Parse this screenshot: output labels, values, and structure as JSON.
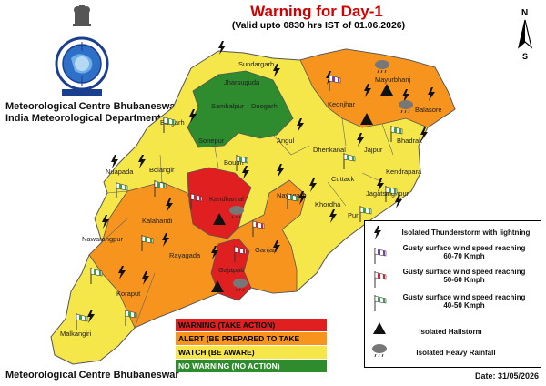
{
  "header": {
    "title": "Warning for Day-1",
    "validity": "(Valid upto 0830 hrs IST of 01.06.2026)"
  },
  "organization": {
    "line1": "Meteorological Centre Bhubaneswar",
    "line2": "India Meteorological Department"
  },
  "footer": {
    "org": "Meteorological Centre Bhubaneswar",
    "date": "Date: 31/05/2026"
  },
  "compass": {
    "north": "N",
    "south": "S"
  },
  "districts": [
    {
      "name": "Sundargarh",
      "level": "watch"
    },
    {
      "name": "Jharsuguda",
      "level": "no_warning"
    },
    {
      "name": "Sambalpur",
      "level": "no_warning"
    },
    {
      "name": "Deogarh",
      "level": "no_warning"
    },
    {
      "name": "Bargarh",
      "level": "watch"
    },
    {
      "name": "Sonepur",
      "level": "no_warning"
    },
    {
      "name": "Nuapada",
      "level": "watch"
    },
    {
      "name": "Bolangir",
      "level": "watch"
    },
    {
      "name": "Boudh",
      "level": "watch"
    },
    {
      "name": "Angul",
      "level": "watch"
    },
    {
      "name": "Keonjhar",
      "level": "alert"
    },
    {
      "name": "Mayurbhanj",
      "level": "alert"
    },
    {
      "name": "Balasore",
      "level": "alert"
    },
    {
      "name": "Bhadrak",
      "level": "watch"
    },
    {
      "name": "Dhenkanal",
      "level": "watch"
    },
    {
      "name": "Jajpur",
      "level": "watch"
    },
    {
      "name": "Kendrapara",
      "level": "watch"
    },
    {
      "name": "Jagatsinghpur",
      "level": "watch"
    },
    {
      "name": "Cuttack",
      "level": "watch"
    },
    {
      "name": "Khordha",
      "level": "watch"
    },
    {
      "name": "Puri",
      "level": "watch"
    },
    {
      "name": "Nayagarh",
      "level": "alert"
    },
    {
      "name": "Kandhamal",
      "level": "warning"
    },
    {
      "name": "Kalahandi",
      "level": "alert"
    },
    {
      "name": "Nawarangpur",
      "level": "alert"
    },
    {
      "name": "Rayagada",
      "level": "alert"
    },
    {
      "name": "Ganjam",
      "level": "alert"
    },
    {
      "name": "Gajapati",
      "level": "warning"
    },
    {
      "name": "Koraput",
      "level": "watch"
    },
    {
      "name": "Malkangiri",
      "level": "watch"
    }
  ],
  "warning_legend": [
    {
      "label": "WARNING (TAKE ACTION)",
      "color": "#e02020"
    },
    {
      "label": "ALERT (BE PREPARED TO TAKE ACTION)",
      "color": "#f7941d"
    },
    {
      "label": "WATCH (BE AWARE)",
      "color": "#f5e74a"
    },
    {
      "label": "NO WARNING (NO ACTION)",
      "color": "#2e8b2e"
    }
  ],
  "symbol_legend": [
    {
      "icon": "lightning-icon",
      "label": "Isolated Thunderstorm with lightning"
    },
    {
      "icon": "windsock-purple-icon",
      "label": "Gusty surface wind speed reaching 60-70 Kmph"
    },
    {
      "icon": "windsock-red-icon",
      "label": "Gusty surface wind speed reaching 50-60 Kmph"
    },
    {
      "icon": "windsock-green-icon",
      "label": "Gusty surface wind speed reaching 40-50 Kmph"
    },
    {
      "icon": "hailstorm-triangle-icon",
      "label": "Isolated Hailstorm"
    },
    {
      "icon": "heavy-rain-cloud-icon",
      "label": "Isolated Heavy Rainfall"
    }
  ],
  "colors": {
    "warning": "#e02020",
    "alert": "#f7941d",
    "watch": "#f5e74a",
    "no_warning": "#2e8b2e"
  }
}
